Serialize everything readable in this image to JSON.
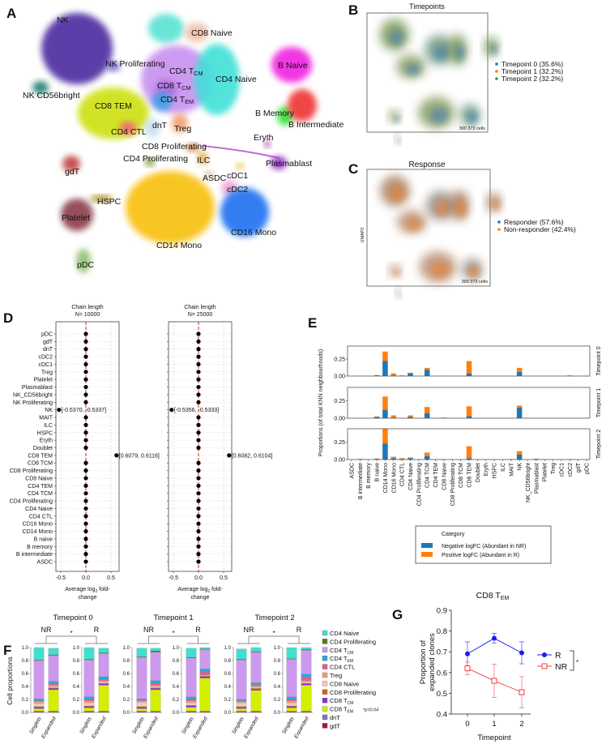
{
  "panel_labels": {
    "a": "A",
    "b": "B",
    "c": "C",
    "d": "D",
    "e": "E",
    "f": "F",
    "g": "G"
  },
  "panel_a": {
    "clusters": [
      {
        "label": "NK",
        "sub": "",
        "color": "#4b2ca0"
      },
      {
        "label": "NK Proliferating",
        "sub": "",
        "color": "#6a5acd"
      },
      {
        "label": "NK CD56bright",
        "sub": "",
        "color": "#1a7a70"
      },
      {
        "label": "CD8 TEM",
        "sub": "",
        "color": "#cde010"
      },
      {
        "label": "CD4 T",
        "sub": "CM",
        "color": "#c890f0"
      },
      {
        "label": "CD8 T",
        "sub": "CM",
        "color": "#b070e0"
      },
      {
        "label": "CD4 T",
        "sub": "EM",
        "color": "#3aa0e0"
      },
      {
        "label": "CD4 Naive",
        "sub": "",
        "color": "#40e0d8"
      },
      {
        "label": "CD8 Naive",
        "sub": "",
        "color": "#f0c0a8"
      },
      {
        "label": "dnT",
        "sub": "",
        "color": "#c8e0f0"
      },
      {
        "label": "Treg",
        "sub": "",
        "color": "#f0a070"
      },
      {
        "label": "CD4 CTL",
        "sub": "",
        "color": "#f06080"
      },
      {
        "label": "CD8 Proliferating",
        "sub": "",
        "color": "#e07030"
      },
      {
        "label": "CD4 Proliferating",
        "sub": "",
        "color": "#6a8a20"
      },
      {
        "label": "ILC",
        "sub": "",
        "color": "#e0a040"
      },
      {
        "label": "ASDC",
        "sub": "",
        "color": "#d0b080"
      },
      {
        "label": "cDC1",
        "sub": "",
        "color": "#f0c030"
      },
      {
        "label": "cDC2",
        "sub": "",
        "color": "#f0a0d0"
      },
      {
        "label": "HSPC",
        "sub": "",
        "color": "#a08010"
      },
      {
        "label": "Platelet",
        "sub": "",
        "color": "#8a3a4a"
      },
      {
        "label": "gdT",
        "sub": "",
        "color": "#c04040"
      },
      {
        "label": "pDC",
        "sub": "",
        "color": "#90c070"
      },
      {
        "label": "CD14 Mono",
        "sub": "",
        "color": "#f8c010"
      },
      {
        "label": "CD16 Mono",
        "sub": "",
        "color": "#1a70f0"
      },
      {
        "label": "B Naive",
        "sub": "",
        "color": "#f020e0"
      },
      {
        "label": "B Memory",
        "sub": "",
        "color": "#30e030"
      },
      {
        "label": "B Intermediate",
        "sub": "",
        "color": "#f03030"
      },
      {
        "label": "Eryth",
        "sub": "",
        "color": "#a030a0"
      },
      {
        "label": "Plasmablast",
        "sub": "",
        "color": "#9020c0"
      }
    ]
  },
  "panel_b": {
    "title": "Timepoints",
    "cell_count": "390 373 cells",
    "legend": [
      {
        "label": "Timepoint 0 (35.6%)",
        "color": "#1f77b4"
      },
      {
        "label": "Timepoint 1 (32.2%)",
        "color": "#ff7f0e"
      },
      {
        "label": "Timepoint 2 (32.2%)",
        "color": "#2ca02c"
      }
    ]
  },
  "panel_c": {
    "title": "Response",
    "axis_label": "UMAP2",
    "cell_count": "390 373 cells",
    "legend": [
      {
        "label": "Responder (57.6%)",
        "color": "#1f77b4"
      },
      {
        "label": "Non-responder (42.4%)",
        "color": "#ff7f0e"
      }
    ]
  },
  "chart_data": [
    {
      "id": "D",
      "type": "scatter",
      "title": "Chain length",
      "categories": [
        "pDC",
        "gdT",
        "dnT",
        "cDC2",
        "cDC1",
        "Treg",
        "Platelet",
        "Plasmablast",
        "NK_CD56bright",
        "NK Proliferating",
        "NK",
        "MAIT",
        "ILC",
        "HSPC",
        "Eryth",
        "Doublet",
        "CD8 TEM",
        "CD8 TCM",
        "CD8 Proliferating",
        "CD8 Naive",
        "CD4 TEM",
        "CD4 TCM",
        "CD4 Proliferating",
        "CD4 Naive",
        "CD4 CTL",
        "CD16 Mono",
        "CD14 Mono",
        "B naive",
        "B memory",
        "B intermediate",
        "ASDC"
      ],
      "xlabel_main": "Average log",
      "xlabel_sub": "2",
      "xlabel_end": " fold-",
      "xlabel_line2": "change",
      "xticks": [
        "-0.5",
        "0.0",
        "0.5"
      ],
      "xlim": [
        -0.6,
        0.65
      ],
      "panels": [
        {
          "subtitle": "N= 10000",
          "values": [
            0,
            0,
            0,
            0,
            0,
            0,
            0,
            0,
            0,
            0,
            -0.5354,
            0,
            0,
            0,
            0,
            0,
            0.6098,
            0,
            0,
            0,
            0,
            0,
            0,
            0,
            0,
            0,
            0,
            0,
            0,
            0,
            0
          ],
          "annotations": [
            {
              "category": "NK",
              "text": "[-0.5370, -0.5337]"
            },
            {
              "category": "CD8 TEM",
              "text": "[0.6079, 0.6116]"
            }
          ]
        },
        {
          "subtitle": "N= 25000",
          "values": [
            0,
            0,
            0,
            0,
            0,
            0,
            0,
            0,
            0,
            0,
            -0.5345,
            0,
            0,
            0,
            0,
            0,
            0.6093,
            0,
            0,
            0,
            0,
            0,
            0,
            0,
            0,
            0,
            0,
            0,
            0,
            0,
            0
          ],
          "annotations": [
            {
              "category": "NK",
              "text": "[-0.5356, -0.5333]"
            },
            {
              "category": "CD8 TEM",
              "text": "[0.6082, 0.6104]"
            }
          ]
        }
      ]
    },
    {
      "id": "E",
      "type": "bar",
      "ylabel": "Proportions (of total KNN neighbourhoods)",
      "yticks": [
        "0.00",
        "0.25"
      ],
      "ylim": [
        0,
        0.44
      ],
      "categories": [
        "ASDC",
        "B intermediate",
        "B memory",
        "B naive",
        "CD14 Mono",
        "CD16 Mono",
        "CD4 CTL",
        "CD4 Naive",
        "CD4 Proliferating",
        "CD4 TCM",
        "CD4 TEM",
        "CD8 Naive",
        "CD8 Proliferating",
        "CD8 TCM",
        "CD8 TEM",
        "Doublet",
        "Eryth",
        "HSPC",
        "ILC",
        "MAIT",
        "NK",
        "NK_CD56bright",
        "Plasmablast",
        "Platelet",
        "Treg",
        "cDC1",
        "cDC2",
        "gdT",
        "pDC"
      ],
      "legend_title": "Category",
      "series_names": [
        {
          "name": "Negative logFC (Abundant in NR)",
          "color": "#1f77b4"
        },
        {
          "name": "Positive logFC (Abundant in R)",
          "color": "#ff7f0e"
        }
      ],
      "facets": [
        {
          "label": "Timepoint 0",
          "negative": [
            0,
            0,
            0,
            0.01,
            0.22,
            0.01,
            0,
            0.04,
            0,
            0.09,
            0,
            0,
            0,
            0,
            0.04,
            0,
            0,
            0,
            0,
            0,
            0.06,
            0,
            0,
            0,
            0,
            0,
            0,
            0,
            0
          ],
          "positive": [
            0,
            0.005,
            0,
            0.005,
            0.14,
            0.03,
            0.01,
            0.01,
            0,
            0.03,
            0,
            0.005,
            0,
            0,
            0.18,
            0.005,
            0,
            0,
            0,
            0,
            0.06,
            0,
            0,
            0,
            0,
            0,
            0.01,
            0,
            0.005
          ]
        },
        {
          "label": "Timepoint 1",
          "negative": [
            0,
            0,
            0,
            0.02,
            0.12,
            0.01,
            0,
            0.02,
            0,
            0.07,
            0,
            0.005,
            0,
            0,
            0.03,
            0,
            0,
            0,
            0,
            0,
            0.15,
            0.005,
            0,
            0,
            0,
            0,
            0,
            0,
            0
          ],
          "positive": [
            0,
            0.005,
            0,
            0.005,
            0.19,
            0.03,
            0.005,
            0.02,
            0,
            0.09,
            0.005,
            0.005,
            0,
            0,
            0.14,
            0,
            0,
            0,
            0,
            0.005,
            0.03,
            0,
            0,
            0,
            0.005,
            0,
            0.005,
            0.005,
            0.005
          ]
        },
        {
          "label": "Timepoint 2",
          "negative": [
            0,
            0,
            0,
            0.01,
            0.23,
            0.02,
            0.01,
            0.02,
            0,
            0.05,
            0,
            0,
            0,
            0,
            0.02,
            0,
            0,
            0,
            0,
            0,
            0.07,
            0,
            0.01,
            0,
            0,
            0,
            0,
            0,
            0
          ],
          "positive": [
            0,
            0.01,
            0,
            0.005,
            0.21,
            0.02,
            0.01,
            0.01,
            0,
            0.05,
            0.005,
            0.005,
            0,
            0,
            0.17,
            0,
            0,
            0,
            0,
            0.005,
            0.05,
            0,
            0,
            0,
            0,
            0,
            0.005,
            0,
            0
          ]
        }
      ]
    },
    {
      "id": "F",
      "type": "bar",
      "stacked": true,
      "ylabel": "Cell proportions",
      "yticks": [
        "0.0",
        "0.2",
        "0.4",
        "0.6",
        "0.8",
        "1.0"
      ],
      "ylim": [
        0,
        1
      ],
      "significance": "*",
      "legend": [
        {
          "label": "CD4 Naive",
          "sub": "",
          "color": "#40e0d0"
        },
        {
          "label": "CD4 Proliferating",
          "sub": "",
          "color": "#5a7a1a"
        },
        {
          "label": "CD4 T",
          "sub": "CM",
          "color": "#cc99ee"
        },
        {
          "label": "CD4 T",
          "sub": "EM",
          "color": "#29a8e0"
        },
        {
          "label": "CD4 CTL",
          "sub": "",
          "color": "#ee5a8a"
        },
        {
          "label": "Treg",
          "sub": "",
          "color": "#f0a070"
        },
        {
          "label": "CD8 Naive",
          "sub": "",
          "color": "#f5c8b8"
        },
        {
          "label": "CD8 Proliferating",
          "sub": "",
          "color": "#e06010"
        },
        {
          "label": "CD8 T",
          "sub": "CM",
          "color": "#8a2be2"
        },
        {
          "label": "CD8 T",
          "sub": "EM",
          "color": "#d4ee00",
          "note": "*p=0.04"
        },
        {
          "label": "dnT",
          "sub": "",
          "color": "#7a7aba"
        },
        {
          "label": "gdT",
          "sub": "",
          "color": "#b01030"
        }
      ],
      "stack_order_bottom_up": [
        "gdT",
        "dnT",
        "CD8 TEM",
        "CD8 TCM",
        "CD8 Proliferating",
        "CD8 Naive",
        "Treg",
        "CD4 CTL",
        "CD4 TEM",
        "CD4 TCM",
        "CD4 Proliferating",
        "CD4 Naive"
      ],
      "timepoints": [
        {
          "title": "Timepoint 0",
          "groups": [
            {
              "name": "NR",
              "bars": [
                {
                  "x": "Singlets",
                  "values": [
                    0.01,
                    0.01,
                    0.04,
                    0.02,
                    0.01,
                    0.05,
                    0.03,
                    0.01,
                    0.03,
                    0.59,
                    0.01,
                    0.19
                  ]
                },
                {
                  "x": "Expanded",
                  "values": [
                    0.01,
                    0.01,
                    0.33,
                    0.02,
                    0.01,
                    0.02,
                    0.02,
                    0.02,
                    0.04,
                    0.4,
                    0.01,
                    0.1
                  ]
                }
              ]
            },
            {
              "name": "R",
              "bars": [
                {
                  "x": "Singlets",
                  "values": [
                    0.01,
                    0.01,
                    0.05,
                    0.02,
                    0.01,
                    0.05,
                    0.03,
                    0.02,
                    0.04,
                    0.57,
                    0.01,
                    0.18
                  ]
                },
                {
                  "x": "Expanded",
                  "values": [
                    0.01,
                    0.01,
                    0.4,
                    0.02,
                    0.01,
                    0.02,
                    0.02,
                    0.02,
                    0.04,
                    0.36,
                    0.01,
                    0.07
                  ]
                }
              ]
            }
          ]
        },
        {
          "title": "Timepoint 1",
          "groups": [
            {
              "name": "NR",
              "bars": [
                {
                  "x": "Singlets",
                  "values": [
                    0.01,
                    0.01,
                    0.04,
                    0.02,
                    0.01,
                    0.07,
                    0.02,
                    0.01,
                    0.02,
                    0.64,
                    0.01,
                    0.13
                  ]
                },
                {
                  "x": "Expanded",
                  "values": [
                    0.01,
                    0.01,
                    0.33,
                    0.02,
                    0.01,
                    0.02,
                    0.02,
                    0.03,
                    0.04,
                    0.44,
                    0.02,
                    0.04
                  ]
                }
              ]
            },
            {
              "name": "R",
              "bars": [
                {
                  "x": "Singlets",
                  "values": [
                    0.01,
                    0.01,
                    0.06,
                    0.02,
                    0.01,
                    0.04,
                    0.03,
                    0.02,
                    0.04,
                    0.6,
                    0.01,
                    0.14
                  ]
                },
                {
                  "x": "Expanded",
                  "values": [
                    0.01,
                    0.01,
                    0.51,
                    0.02,
                    0.01,
                    0.01,
                    0.01,
                    0.04,
                    0.05,
                    0.3,
                    0.01,
                    0.02
                  ]
                }
              ]
            }
          ]
        },
        {
          "title": "Timepoint 2",
          "groups": [
            {
              "name": "NR",
              "bars": [
                {
                  "x": "Singlets",
                  "values": [
                    0.01,
                    0.01,
                    0.04,
                    0.02,
                    0.01,
                    0.06,
                    0.02,
                    0.01,
                    0.02,
                    0.61,
                    0.01,
                    0.16
                  ]
                },
                {
                  "x": "Expanded",
                  "values": [
                    0.01,
                    0.01,
                    0.32,
                    0.02,
                    0.01,
                    0.02,
                    0.02,
                    0.02,
                    0.03,
                    0.47,
                    0.01,
                    0.06
                  ]
                }
              ]
            },
            {
              "name": "R",
              "bars": [
                {
                  "x": "Singlets",
                  "values": [
                    0.01,
                    0.01,
                    0.05,
                    0.02,
                    0.01,
                    0.05,
                    0.03,
                    0.02,
                    0.04,
                    0.58,
                    0.01,
                    0.17
                  ]
                },
                {
                  "x": "Expanded",
                  "values": [
                    0.01,
                    0.01,
                    0.4,
                    0.02,
                    0.01,
                    0.02,
                    0.02,
                    0.05,
                    0.05,
                    0.37,
                    0.01,
                    0.03
                  ]
                }
              ]
            }
          ]
        }
      ]
    },
    {
      "id": "G",
      "type": "line",
      "title_main": "CD8 T",
      "title_sub": "EM",
      "xlabel": "Timepoint",
      "ylabel_line1": "Proportion of",
      "ylabel_line2": "expanded clones",
      "x": [
        "0",
        "1",
        "2"
      ],
      "yticks": [
        "0.4",
        "0.5",
        "0.6",
        "0.7",
        "0.8",
        "0.9"
      ],
      "ylim": [
        0.4,
        0.9
      ],
      "significance": "*",
      "series": [
        {
          "name": "R",
          "color": "#1a1aee",
          "marker": "filled-circle",
          "values": [
            0.69,
            0.765,
            0.695
          ],
          "errors": [
            0.058,
            0.024,
            0.053
          ]
        },
        {
          "name": "NR",
          "color": "#f04040",
          "marker": "open-square",
          "values": [
            0.62,
            0.56,
            0.505
          ],
          "errors": [
            0.03,
            0.08,
            0.075
          ]
        }
      ]
    }
  ]
}
